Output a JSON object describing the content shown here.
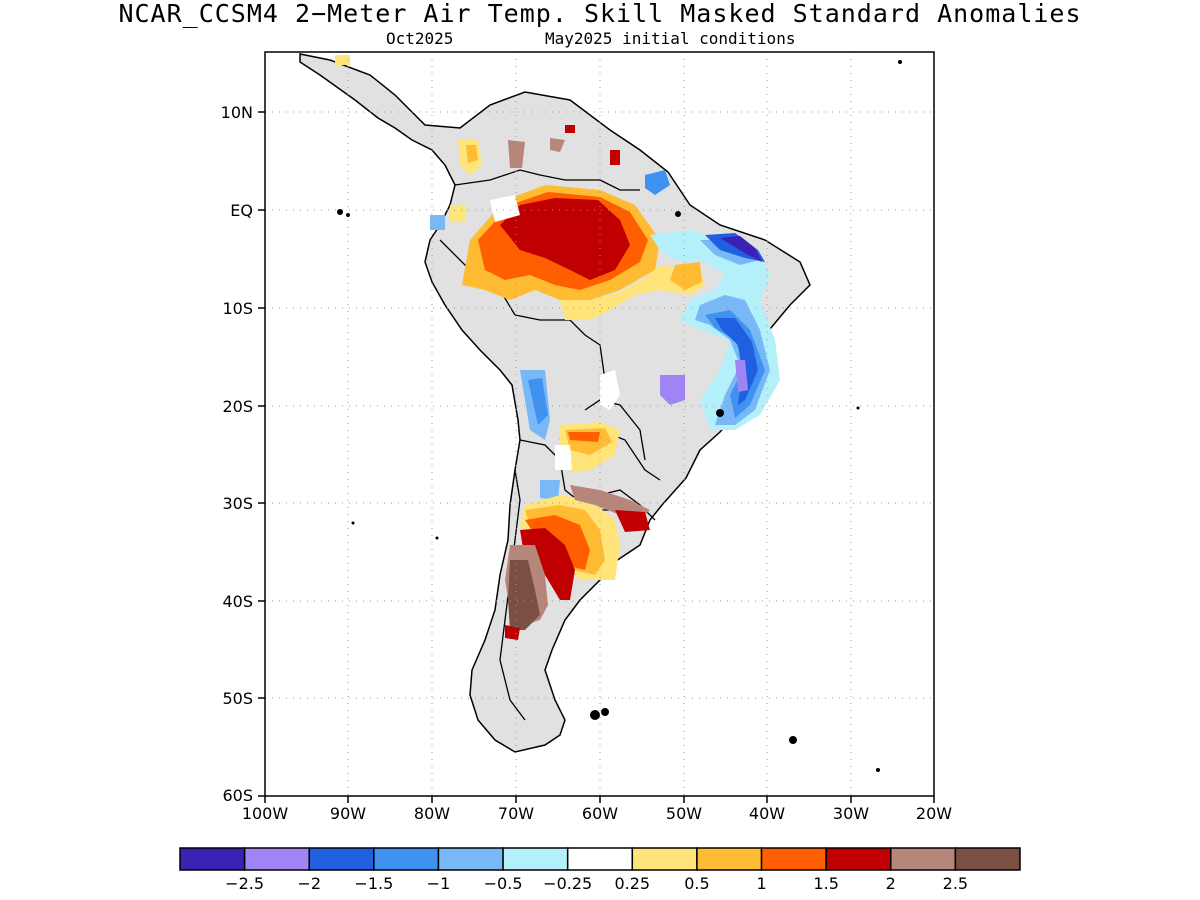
{
  "title": "NCAR_CCSM4 2−Meter Air Temp. Skill Masked Standard Anomalies",
  "subtitle_left": "Oct2025",
  "subtitle_right": "May2025 initial conditions",
  "map": {
    "region": "South America",
    "lon_range": [
      -100,
      -20
    ],
    "lat_range": [
      -60,
      16
    ],
    "lat_ticks": [
      "10N",
      "EQ",
      "10S",
      "20S",
      "30S",
      "40S",
      "50S",
      "60S"
    ],
    "lon_ticks": [
      "100W",
      "90W",
      "80W",
      "70W",
      "60W",
      "50W",
      "40W",
      "30W",
      "20W"
    ],
    "grid": "dotted",
    "no_skill_mask_color": "#e1e1e1"
  },
  "colorbar": {
    "colors": [
      "#3a22b4",
      "#9f84f3",
      "#1f5fe0",
      "#3f92f0",
      "#78b8f7",
      "#b4f0fa",
      "#ffffff",
      "#ffe47a",
      "#ffbc33",
      "#ff5f00",
      "#c00000",
      "#b58679",
      "#7a5045"
    ],
    "labels": [
      "−2.5",
      "−2",
      "−1.5",
      "−1",
      "−0.5",
      "−0.25",
      "0.25",
      "0.5",
      "1",
      "1.5",
      "2",
      "2.5"
    ]
  }
}
